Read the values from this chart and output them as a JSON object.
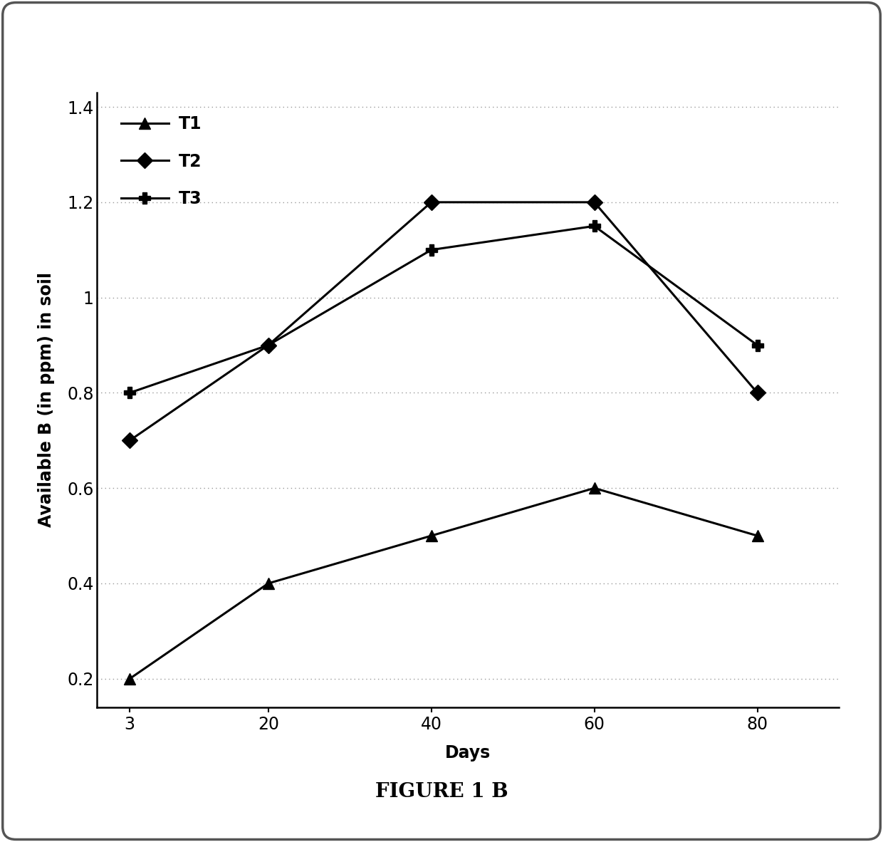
{
  "days": [
    3,
    20,
    40,
    60,
    80
  ],
  "T1": [
    0.2,
    0.4,
    0.5,
    0.6,
    0.5
  ],
  "T2": [
    0.7,
    0.9,
    1.2,
    1.2,
    0.8
  ],
  "T3": [
    0.8,
    0.9,
    1.1,
    1.15,
    0.9
  ],
  "xlabel": "Days",
  "ylabel": "Available B (in ppm) in soil",
  "title": "FIGURE 1 B",
  "ylim_min": 0.14,
  "ylim_max": 1.43,
  "yticks": [
    0.2,
    0.4,
    0.6,
    0.8,
    1.0,
    1.2,
    1.4
  ],
  "ytick_labels": [
    "0.2",
    "0.4",
    "0.6",
    "0.8",
    "1",
    "1.2",
    "1.4"
  ],
  "legend_labels": [
    "T1",
    "T2",
    "T3"
  ],
  "line_color": "#000000",
  "background_color": "#ffffff",
  "grid_color": "#999999",
  "marker_T1": "^",
  "marker_T2": "D",
  "marker_T3": "P",
  "linewidth": 2.2,
  "markersize_T1": 11,
  "markersize_T2": 11,
  "markersize_T3": 12,
  "title_fontsize": 20,
  "axis_label_fontsize": 17,
  "tick_fontsize": 17,
  "legend_fontsize": 17
}
